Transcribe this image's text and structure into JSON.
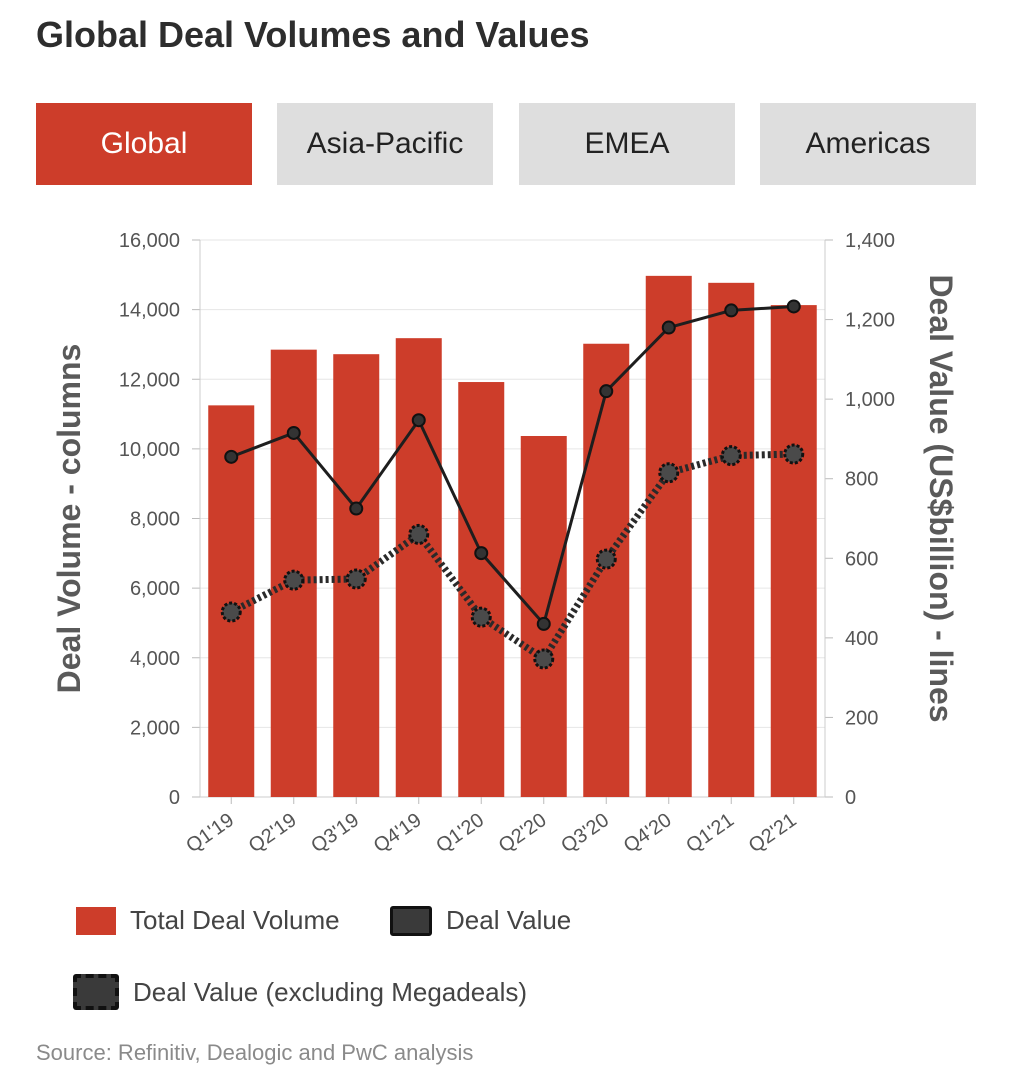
{
  "title": "Global Deal Volumes and Values",
  "tabs": [
    {
      "label": "Global",
      "active": true
    },
    {
      "label": "Asia-Pacific",
      "active": false
    },
    {
      "label": "EMEA",
      "active": false
    },
    {
      "label": "Americas",
      "active": false
    }
  ],
  "source": "Source: Refinitiv, Dealogic and PwC analysis",
  "colors": {
    "bar": "#cd3d2a",
    "line": "#1e1e1e",
    "tab_active": "#cd3d2a",
    "tab_inactive": "#dedede"
  },
  "chart_data": {
    "type": "bar",
    "categories": [
      "Q1'19",
      "Q2'19",
      "Q3'19",
      "Q4'19",
      "Q1'20",
      "Q2'20",
      "Q3'20",
      "Q4'20",
      "Q1'21",
      "Q2'21"
    ],
    "ylabel": "Deal Volume - columns",
    "y2label": "Deal Value (US$billion) - lines",
    "ylim": [
      0,
      16000
    ],
    "y2lim": [
      0,
      1400
    ],
    "yticks": [
      "0",
      "2,000",
      "4,000",
      "6,000",
      "8,000",
      "10,000",
      "12,000",
      "14,000",
      "16,000"
    ],
    "y2ticks": [
      "0",
      "200",
      "400",
      "600",
      "800",
      "1,000",
      "1,200",
      "1,400"
    ],
    "grid": true,
    "legend_position": "bottom",
    "series": [
      {
        "name": "Total Deal Volume",
        "type": "bar",
        "axis": "left",
        "values": [
          11250,
          12850,
          12720,
          13180,
          11920,
          10370,
          13020,
          14970,
          14770,
          14130
        ]
      },
      {
        "name": "Deal Value",
        "type": "line",
        "axis": "right",
        "style": "solid",
        "values": [
          855,
          915,
          725,
          947,
          613,
          435,
          1020,
          1180,
          1223,
          1233
        ]
      },
      {
        "name": "Deal Value (excluding Megadeals)",
        "type": "line",
        "axis": "right",
        "style": "dotted",
        "values": [
          465,
          545,
          548,
          660,
          452,
          347,
          598,
          815,
          858,
          862
        ]
      }
    ]
  }
}
